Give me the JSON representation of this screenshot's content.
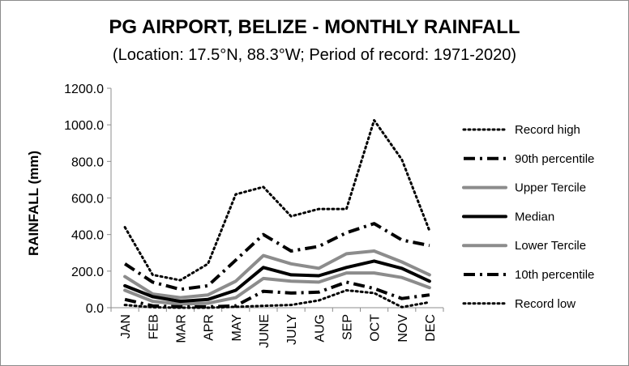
{
  "chart_data": {
    "type": "line",
    "title": "PG AIRPORT, BELIZE - MONTHLY RAINFALL",
    "subtitle": "(Location: 17.5°N, 88.3°W; Period of record: 1971-2020)",
    "xlabel": "",
    "ylabel": "RAINFALL (mm)",
    "ylim": [
      0,
      1200
    ],
    "yticks": [
      0,
      200,
      400,
      600,
      800,
      1000,
      1200
    ],
    "ytick_labels": [
      "0.0",
      "200.0",
      "400.0",
      "600.0",
      "800.0",
      "1000.0",
      "1200.0"
    ],
    "categories": [
      "JAN",
      "FEB",
      "MAR",
      "APR",
      "MAY",
      "JUNE",
      "JULY",
      "AUG",
      "SEP",
      "OCT",
      "NOV",
      "DEC"
    ],
    "grid": false,
    "legend_position": "right",
    "series": [
      {
        "name": "Record high",
        "style": "dotted",
        "color": "#000000",
        "values": [
          440,
          180,
          150,
          240,
          620,
          660,
          500,
          540,
          540,
          1025,
          810,
          420
        ]
      },
      {
        "name": "90th percentile",
        "style": "dashdot",
        "color": "#000000",
        "values": [
          240,
          140,
          100,
          120,
          260,
          400,
          310,
          335,
          410,
          460,
          370,
          340
        ]
      },
      {
        "name": "Upper Tercile",
        "style": "solid-thick",
        "color": "#8c8c8c",
        "values": [
          170,
          75,
          55,
          70,
          145,
          285,
          240,
          215,
          295,
          310,
          250,
          180
        ]
      },
      {
        "name": "Median",
        "style": "solid-thick",
        "color": "#000000",
        "values": [
          120,
          60,
          35,
          45,
          95,
          220,
          180,
          175,
          220,
          255,
          215,
          145
        ]
      },
      {
        "name": "Lower Tercile",
        "style": "solid-thick",
        "color": "#8c8c8c",
        "values": [
          95,
          35,
          20,
          25,
          55,
          160,
          145,
          140,
          190,
          190,
          165,
          110
        ]
      },
      {
        "name": "10th percentile",
        "style": "dashdot",
        "color": "#000000",
        "values": [
          45,
          10,
          5,
          5,
          10,
          90,
          80,
          85,
          140,
          105,
          50,
          70
        ]
      },
      {
        "name": "Record low",
        "style": "dotted",
        "color": "#000000",
        "values": [
          15,
          2,
          0,
          0,
          5,
          10,
          15,
          40,
          95,
          80,
          3,
          30
        ]
      }
    ]
  }
}
